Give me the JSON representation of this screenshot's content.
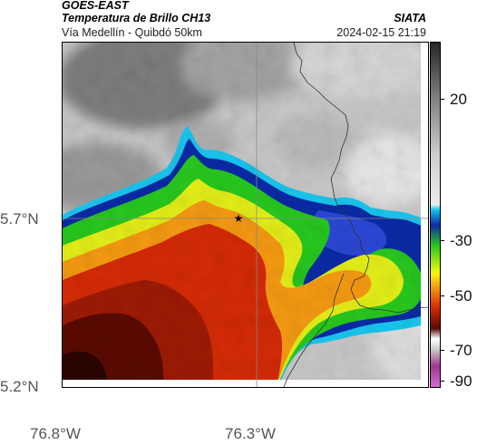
{
  "header": {
    "satellite": "GOES-EAST",
    "product_title": "Temperatura de Brillo CH13",
    "organization": "SIATA",
    "subtitle": "Vía Medellín - Quibdó 50km",
    "datetime": "2024-02-15 21:19"
  },
  "map": {
    "marker_symbol": "★",
    "lat_labels": [
      "5.7°N",
      "5.2°N"
    ],
    "lon_labels": [
      "76.8°W",
      "76.3°W"
    ]
  },
  "colorbar": {
    "labels": [
      "20",
      "-30",
      "-50",
      "-70",
      "-90"
    ],
    "colors": {
      "warm_dark": "#262626",
      "warm_light": "#ececec",
      "cyan": "#19c6ef",
      "blue": "#0a2aa6",
      "green": "#27c81e",
      "yellow": "#f7f711",
      "orange": "#f59a12",
      "red": "#d42a06",
      "dark_red": "#5a0a02",
      "purple": "#a0368f"
    }
  }
}
